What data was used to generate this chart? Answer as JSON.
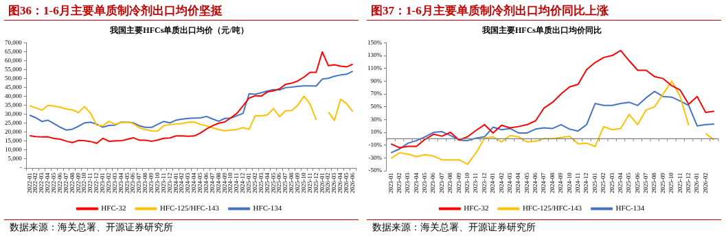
{
  "chart_data": [
    {
      "type": "line",
      "title": "图36：1-6月主要单质制冷剂出口均价坚挺",
      "subtitle": "我国主要HFCs单质出口均价（元/吨）",
      "annotations": [
        "数据来源：海关总署、开源证券研究所"
      ],
      "legend": "bottom",
      "grid": false,
      "categories": [
        "2022-01",
        "2022-02",
        "2022-03",
        "2022-04",
        "2022-05",
        "2022-06",
        "2022-07",
        "2022-08",
        "2022-09",
        "2022-10",
        "2022-11",
        "2022-12",
        "2023-01",
        "2023-02",
        "2023-03",
        "2023-04",
        "2023-05",
        "2023-06",
        "2023-07",
        "2023-08",
        "2023-09",
        "2023-10",
        "2023-11",
        "2023-12",
        "2024-01",
        "2024-02",
        "2024-03",
        "2024-04",
        "2024-05",
        "2024-06",
        "2024-07",
        "2024-08",
        "2024-09",
        "2024-10",
        "2024-11",
        "2024-12",
        "2025-01",
        "2025-02",
        "2025-03",
        "2025-04",
        "2025-05",
        "2025-06",
        "2025-07",
        "2025-08",
        "2025-09",
        "2025-10",
        "2025-11",
        "2025-12",
        "2026-01",
        "2026-02",
        "2026-03",
        "2026-04",
        "2026-05",
        "2026-06"
      ],
      "ylim": [
        0,
        70000
      ],
      "yticks": [
        {
          "value": 0,
          "label": "-"
        },
        {
          "value": 5000,
          "label": "5,000"
        },
        {
          "value": 10000,
          "label": "10,000"
        },
        {
          "value": 15000,
          "label": "15,000"
        },
        {
          "value": 20000,
          "label": "20,000"
        },
        {
          "value": 25000,
          "label": "25,000"
        },
        {
          "value": 30000,
          "label": "30,000"
        },
        {
          "value": 35000,
          "label": "35,000"
        },
        {
          "value": 40000,
          "label": "40,000"
        },
        {
          "value": 45000,
          "label": "45,000"
        },
        {
          "value": 50000,
          "label": "50,000"
        },
        {
          "value": 55000,
          "label": "55,000"
        },
        {
          "value": 60000,
          "label": "60,000"
        },
        {
          "value": 65000,
          "label": "65,000"
        },
        {
          "value": 70000,
          "label": "70,000"
        }
      ],
      "series": [
        {
          "name": "HFC-32",
          "color": "#ff0000",
          "values": [
            18000,
            17500,
            17300,
            17400,
            16500,
            16100,
            15000,
            14200,
            15400,
            15200,
            14800,
            13800,
            16600,
            14900,
            15100,
            15200,
            16000,
            16900,
            15500,
            15500,
            14900,
            15600,
            16600,
            16800,
            17900,
            17900,
            17700,
            17900,
            19500,
            21800,
            23600,
            25000,
            25700,
            28100,
            30500,
            34700,
            39100,
            40400,
            40200,
            42500,
            43100,
            44300,
            46800,
            47400,
            48700,
            50800,
            53500,
            53500,
            64900,
            57200,
            57700,
            56900,
            56500,
            58000
          ]
        },
        {
          "name": "HFC-125/HFC-143",
          "color": "#ffc000",
          "values": [
            34700,
            33600,
            32300,
            35000,
            34600,
            34000,
            33000,
            32500,
            30900,
            34300,
            30500,
            23900,
            23600,
            26100,
            24400,
            25400,
            25700,
            24800,
            22500,
            21500,
            20700,
            20600,
            23700,
            24200,
            24600,
            24800,
            25600,
            25700,
            24300,
            23600,
            22500,
            21500,
            20800,
            21200,
            21600,
            22500,
            21600,
            29200,
            29100,
            29700,
            33200,
            28700,
            32000,
            32100,
            35200,
            40100,
            35700,
            26900,
            null,
            31200,
            26600,
            38400,
            36000,
            31500
          ]
        },
        {
          "name": "HFC-134",
          "color": "#4472c4",
          "values": [
            29500,
            28100,
            26000,
            26700,
            24800,
            22800,
            21200,
            21700,
            23300,
            25200,
            25600,
            24500,
            22800,
            23800,
            24000,
            25600,
            25700,
            25200,
            23600,
            22700,
            22700,
            24400,
            26000,
            25200,
            26700,
            27300,
            27700,
            27900,
            28000,
            28800,
            27400,
            26100,
            27700,
            27900,
            29200,
            30500,
            41500,
            41200,
            42100,
            43000,
            43800,
            43700,
            44900,
            45200,
            45600,
            45900,
            45900,
            45800,
            49700,
            50100,
            51300,
            52000,
            52400,
            54100
          ]
        }
      ]
    },
    {
      "type": "line",
      "title": "图37：1-6月主要单质制冷剂出口均价同比上涨",
      "subtitle": "我国主要HFCs单质出口均价同比",
      "annotations": [
        "数据来源：海关总署、开源证券研究所"
      ],
      "legend": "bottom",
      "grid": false,
      "categories": [
        "2023-01",
        "2023-02",
        "2023-03",
        "2023-04",
        "2023-05",
        "2023-06",
        "2023-07",
        "2023-08",
        "2023-09",
        "2023-10",
        "2023-11",
        "2023-12",
        "2024-01",
        "2024-02",
        "2024-03",
        "2024-04",
        "2024-05",
        "2024-06",
        "2024-07",
        "2024-08",
        "2024-09",
        "2024-10",
        "2024-11",
        "2024-12",
        "2025-01",
        "2025-02",
        "2025-03",
        "2025-04",
        "2025-05",
        "2025-06",
        "2025-07",
        "2025-08",
        "2025-09",
        "2025-10",
        "2025-11",
        "2025-12",
        "2026-01",
        "2026-02",
        null
      ],
      "ylim": [
        -50,
        150
      ],
      "yticks": [
        {
          "value": -50,
          "label": "-50%"
        },
        {
          "value": -30,
          "label": "-30%"
        },
        {
          "value": -10,
          "label": "-10%"
        },
        {
          "value": 10,
          "label": "10%"
        },
        {
          "value": 30,
          "label": "30%"
        },
        {
          "value": 50,
          "label": "50%"
        },
        {
          "value": 70,
          "label": "70%"
        },
        {
          "value": 90,
          "label": "90%"
        },
        {
          "value": 110,
          "label": "110%"
        },
        {
          "value": 130,
          "label": "130%"
        },
        {
          "value": 150,
          "label": "150%"
        }
      ],
      "ref_lines": [
        {
          "axis": "y",
          "value": 0,
          "label": null,
          "color": "#808080"
        }
      ],
      "series": [
        {
          "name": "HFC-32",
          "color": "#ff0000",
          "values": [
            -8,
            -14,
            -12,
            -12,
            -1,
            7,
            4,
            10,
            -2,
            3,
            13,
            22,
            9,
            21,
            17,
            19,
            22,
            28,
            48,
            57,
            70,
            81,
            85,
            108,
            119,
            127,
            130,
            138,
            122,
            107,
            107,
            97,
            94,
            83,
            76,
            54,
            66,
            41,
            43
          ]
        },
        {
          "name": "HFC-125/HFC-143",
          "color": "#ffc000",
          "values": [
            -31,
            -22,
            -24,
            -28,
            -25,
            -27,
            -33,
            -33,
            -33,
            -40,
            -22,
            1,
            3,
            -5,
            5,
            3,
            -5,
            -4,
            0,
            0,
            2,
            4,
            -8,
            -7,
            -12,
            19,
            14,
            16,
            38,
            22,
            45,
            50,
            70,
            90,
            66,
            21,
            null,
            8,
            -2
          ]
        },
        {
          "name": "HFC-134",
          "color": "#4472c4",
          "values": [
            -22,
            -16,
            -7,
            -3,
            3,
            10,
            11,
            5,
            -2,
            -3,
            1,
            3,
            18,
            14,
            16,
            9,
            9,
            15,
            17,
            16,
            22,
            15,
            12,
            22,
            55,
            52,
            52,
            55,
            57,
            52,
            64,
            74,
            66,
            65,
            59,
            52,
            20,
            22,
            23
          ]
        }
      ]
    }
  ]
}
